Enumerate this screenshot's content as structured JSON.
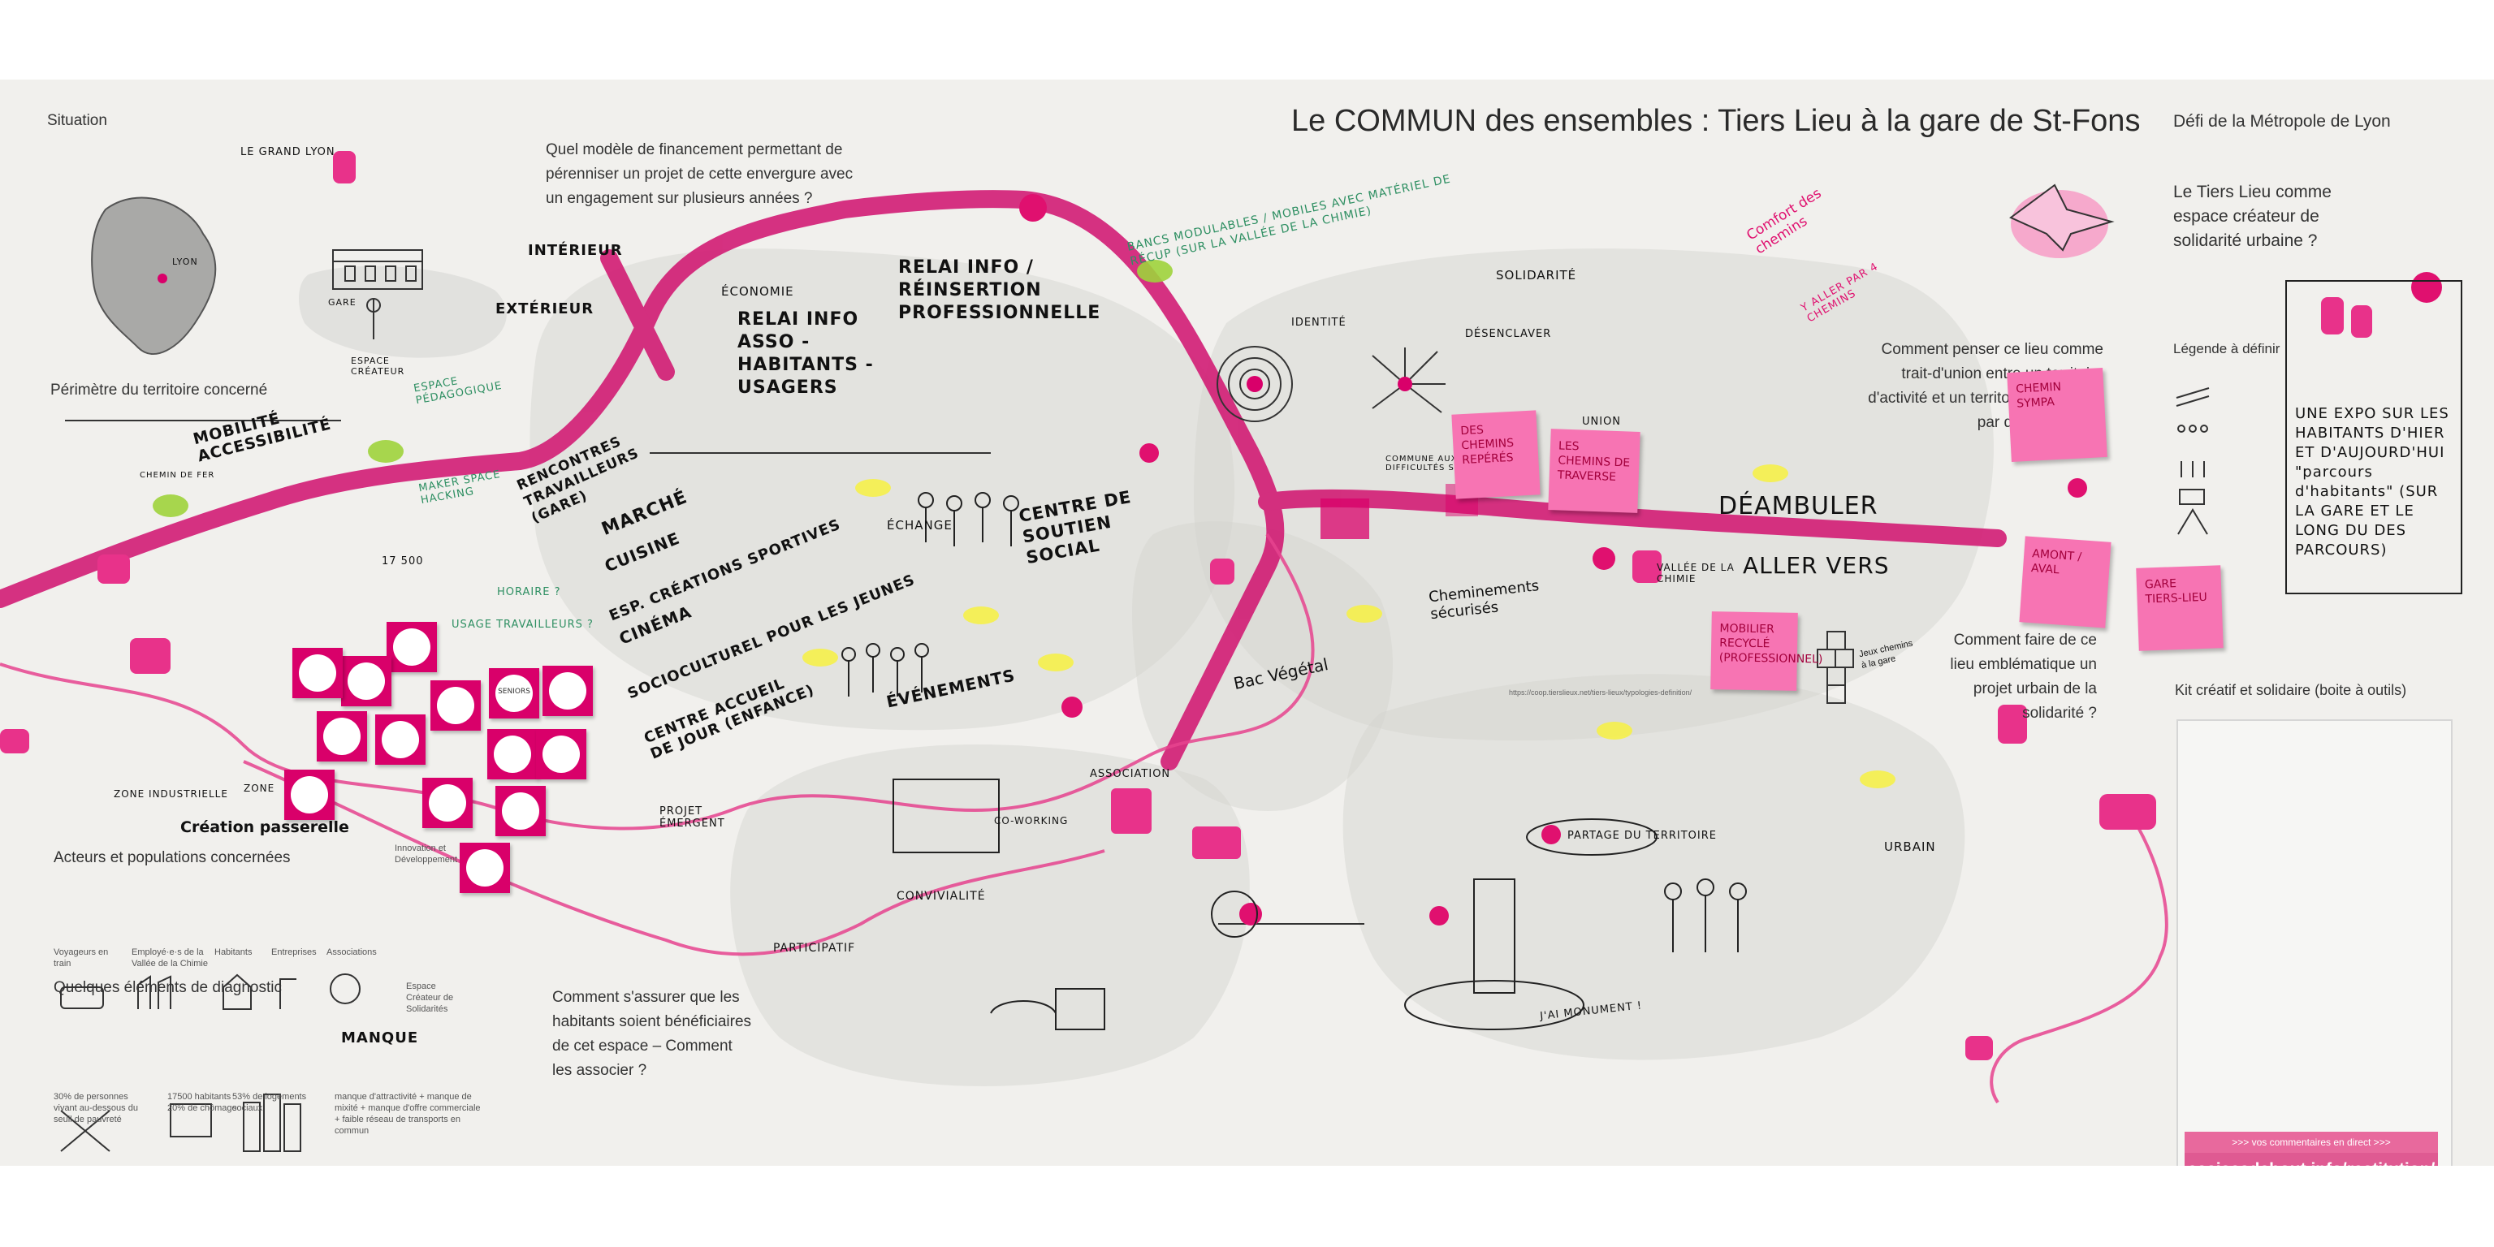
{
  "title": "Le COMMUN des ensembles : Tiers Lieu à la gare de St-Fons",
  "defi": "Défi de la Métropole de Lyon",
  "left_panel": {
    "situation": "Situation",
    "grand_lyon": "LE GRAND LYON",
    "lyon": "LYON",
    "gare": "GARE",
    "espace_createur": "ESPACE CRÉATEUR",
    "interieur": "INTÉRIEUR",
    "exterieur": "EXTÉRIEUR",
    "perimetre": "Périmètre du territoire concerné",
    "chemin_de_fer": "CHEMIN DE FER",
    "zone_industrielle": "ZONE INDUSTRIELLE",
    "zone": "ZONE",
    "creation_passerelle": "Création passerelle",
    "acteurs_title": "Acteurs et populations concernées",
    "acteurs": [
      "Voyageurs en train",
      "Employé·e·s de la Vallée de la Chimie",
      "Habitants",
      "Entreprises",
      "Associations"
    ],
    "mobilite_handwritten": "MOBILITÉ ACCESSIBILITÉ",
    "espace_createur_solidarite": "Espace Créateur de Solidarités",
    "innovation": "Innovation et Développement",
    "diagnostic_title": "Quelques éléments de diagnostic",
    "diagnostic": [
      "30% de personnes vivant au-dessous du seuil de pauvreté",
      "17500 habitants 20% de chômage",
      "53% de logements sociaux",
      "manque d'attractivité + manque de mixité + manque d'offre commerciale + faible réseau de transports en commun"
    ],
    "manque": "MANQUE",
    "population": "17 500",
    "seniors": "SENIORS"
  },
  "questions": {
    "financement": "Quel modèle de financement permettant de pérenniser un projet de cette envergure avec un engagement sur plusieurs années ?",
    "habitants": "Comment s'assurer que les habitants soient bénéficiaires de cet espace – Comment les associer ?",
    "trait_union": "Comment penser ce lieu comme trait-d'union entre un territoire d'activité et un territoire concernée par des fragilités ?",
    "emblematique": "Comment faire de ce lieu emblématique un projet urbain de la solidarité ?",
    "tiers_lieu": "Le Tiers Lieu comme espace créateur de solidarité urbaine ?"
  },
  "zones": {
    "economie": "ÉCONOMIE",
    "echange": "ÉCHANGE",
    "evenements": "ÉVÉNEMENTS",
    "solidarite": "SOLIDARITÉ",
    "identite": "IDENTITÉ",
    "desenclaver": "DÉSENCLAVER",
    "union": "UNION",
    "commune": "COMMUNE AUX DIFFICULTÉS SOCIALES",
    "vallee_chimie": "VALLÉE DE LA CHIMIE",
    "urbain": "URBAIN",
    "convivialite": "CONVIVIALITÉ",
    "participatif": "PARTICIPATIF",
    "association": "ASSOCIATION",
    "coworking": "CO-WORKING",
    "projet_emergent": "PROJET ÉMERGENT",
    "partage": "PARTAGE DU TERRITOIRE",
    "monument": "J'AI MONUMENT !"
  },
  "handwritten": {
    "relai_info": "RELAI INFO ASSO - HABITANTS - USAGERS",
    "relai_reinsertion": "RELAI INFO / RÉINSERTION PROFESSIONNELLE",
    "rencontres": "RENCONTRES TRAVAILLEURS (GARE)",
    "marche_list": [
      "MARCHÉ",
      "CUISINE",
      "ESP. CRÉATIONS SPORTIVES",
      "CINÉMA",
      "SOCIOCULTUREL POUR LES JEUNES",
      "CENTRE ACCUEIL DE JOUR (ENFANCE)"
    ],
    "centre_soutien": "CENTRE DE SOUTIEN SOCIAL",
    "bancs": "BANCS MODULABLES / MOBILES AVEC MATÉRIEL DE RÉCUP (sur la Vallée de la Chimie)",
    "cheminements": "Cheminements sécurisés",
    "bac_vegetal": "Bac Végétal",
    "deambuler": "DÉAMBULER",
    "aller_vers": "ALLER VERS",
    "horaires": "HORAIRE ?",
    "usage_travailleurs": "USAGE TRAVAILLEURS ?",
    "maker_space": "MAKER SPACE HACKING",
    "espace_pedagogique": "ESPACE PÉDAGOGIQUE",
    "jeux": "Jeux chemins à la gare",
    "comfort": "Comfort des chemins",
    "y_aller": "Y ALLER PAR 4 CHEMINS",
    "expo": "UNE EXPO SUR LES HABITANTS D'HIER ET D'AUJOURD'HUI \"parcours d'habitants\" (SUR LA GARE ET LE LONG DU DES PARCOURS)",
    "url_small": "https://coop.tierslieux.net/tiers-lieux/typologies-definition/"
  },
  "stickies": [
    {
      "text": "Des chemins repérés"
    },
    {
      "text": "Les chemins de traverse"
    },
    {
      "text": "Mobilier recyclé (professionnel)"
    },
    {
      "text": "Chemin sympa"
    },
    {
      "text": "Amont / aval"
    },
    {
      "text": "Gare Tiers-Lieu"
    }
  ],
  "legend_title": "Légende à définir",
  "kit_title": "Kit créatif et solidaire (boite à outils)",
  "banner": {
    "top": ">>> vos commentaires en direct >>>",
    "main": "assisesdebout.info/restitution/"
  },
  "colors": {
    "accent": "#d9006a",
    "sticky": "#f774b3",
    "board": "#f1f0ed",
    "zone": "#c9c9c6"
  }
}
